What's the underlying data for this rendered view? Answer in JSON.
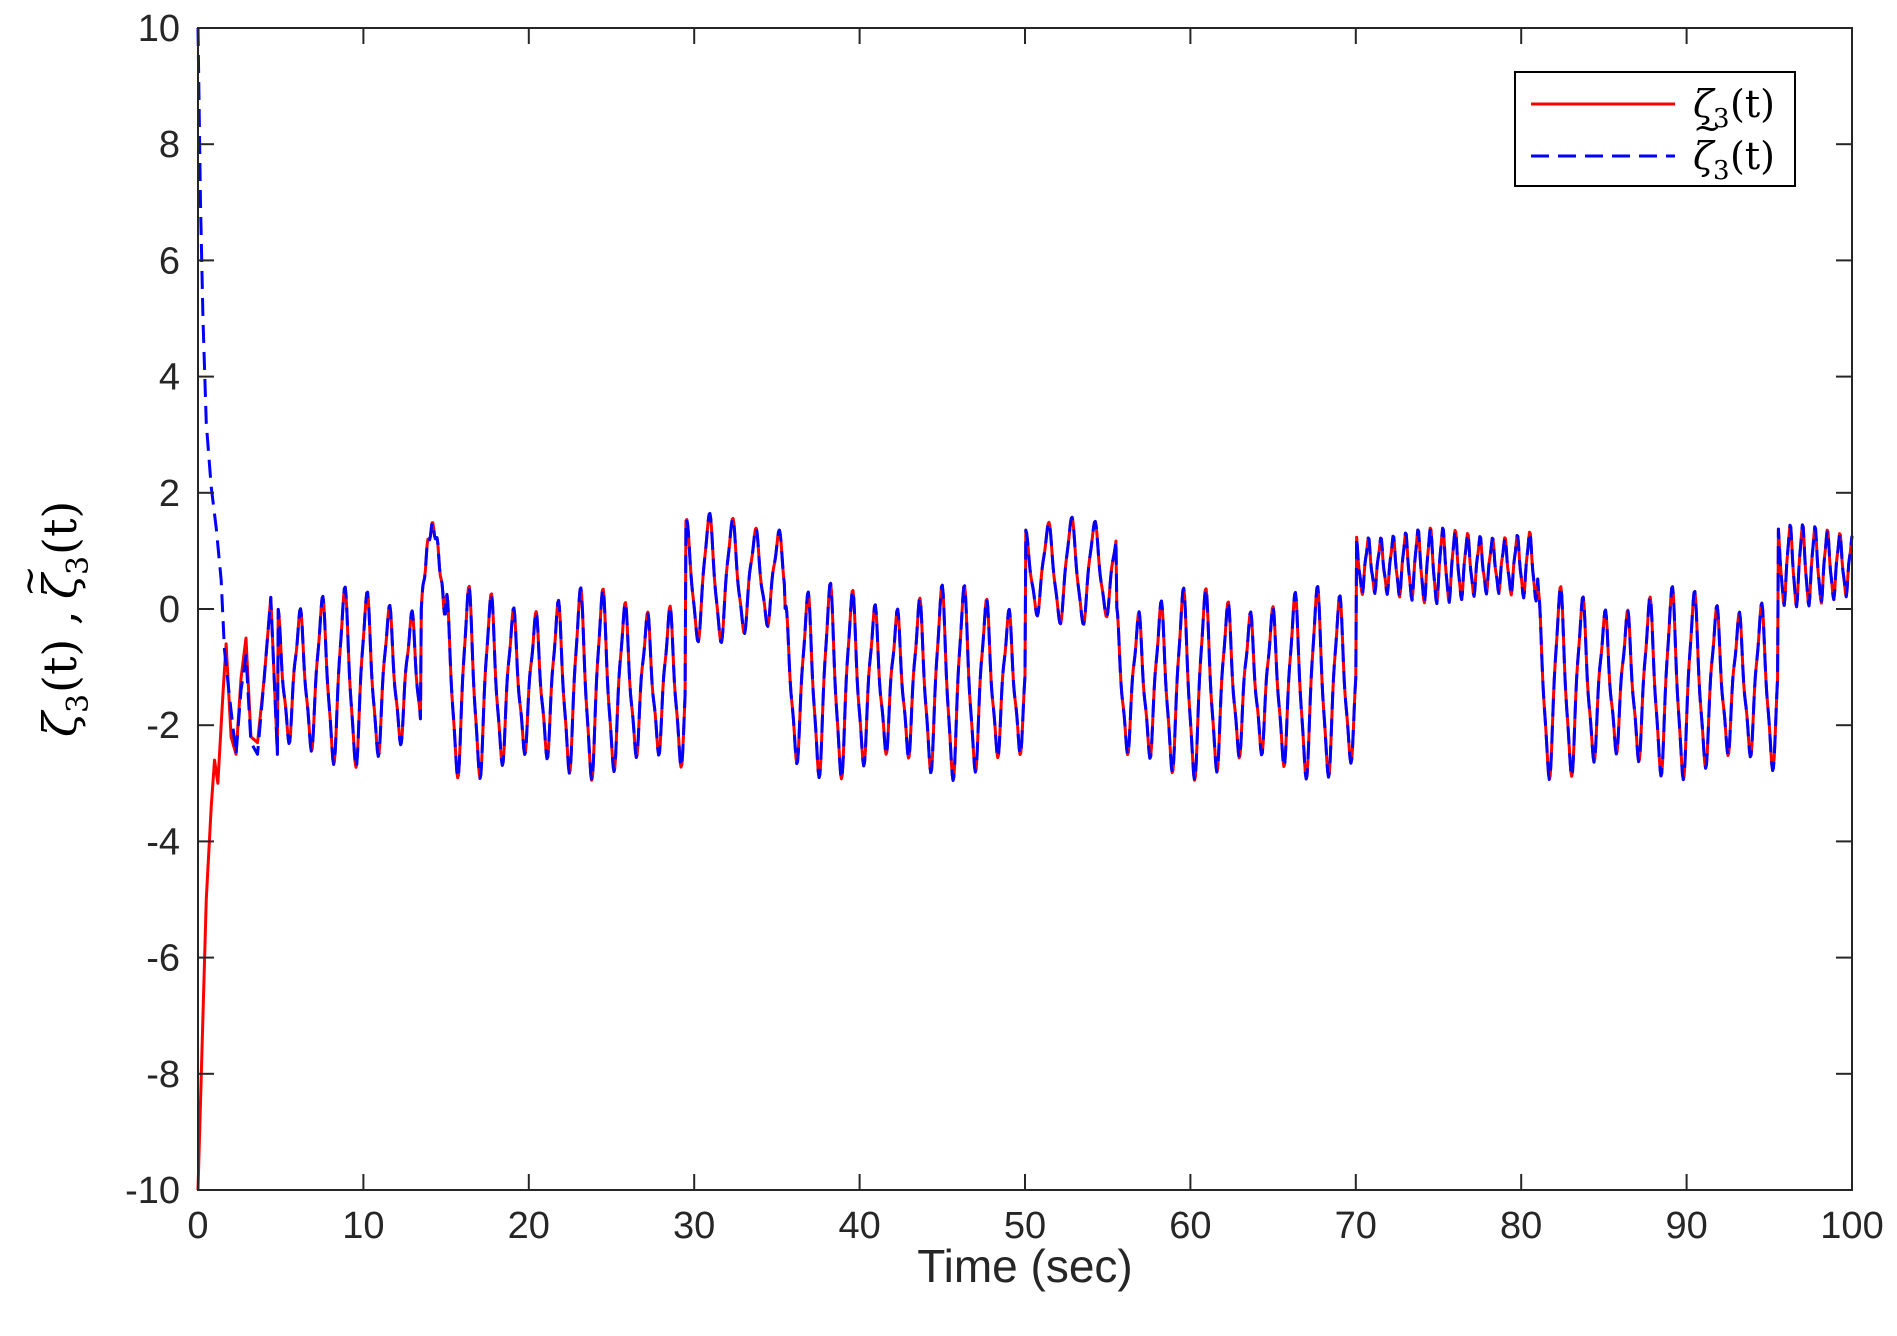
{
  "chart_data": {
    "type": "line",
    "xlabel": "Time (sec)",
    "ylabel": {
      "base": "ζ",
      "subscript": "3",
      "arg": "(t)",
      "separator": ", ",
      "tilde": "~",
      "full": "ζ3(t), ζ̃3(t)"
    },
    "xlim": [
      0,
      100
    ],
    "ylim": [
      -10,
      10
    ],
    "xticks": [
      "0",
      "10",
      "20",
      "30",
      "40",
      "50",
      "60",
      "70",
      "80",
      "90",
      "100"
    ],
    "yticks": [
      "-10",
      "-8",
      "-6",
      "-4",
      "-2",
      "0",
      "2",
      "4",
      "6",
      "8",
      "10"
    ],
    "grid": false,
    "legend_position": "top-right",
    "colors": {
      "zeta": "#ff0000",
      "zeta_tilde": "#0000ff",
      "axes": "#262626"
    },
    "series": [
      {
        "name": "ζ3(t)",
        "label_base": "ζ",
        "label_sub": "3",
        "label_arg": "(t)",
        "style": "solid",
        "color": "#ff0000",
        "points": [
          [
            0,
            -10
          ],
          [
            0.2,
            -8
          ],
          [
            0.5,
            -5
          ],
          [
            0.8,
            -3.4
          ],
          [
            1.0,
            -2.6
          ],
          [
            1.2,
            -3
          ],
          [
            1.5,
            -1.5
          ],
          [
            1.7,
            -0.6
          ],
          [
            2.0,
            -2.2
          ],
          [
            2.3,
            -2.5
          ],
          [
            2.6,
            -1.2
          ],
          [
            2.9,
            -0.5
          ],
          [
            3.2,
            -2.2
          ],
          [
            3.6,
            -2.3
          ],
          [
            4.0,
            -1.2
          ],
          [
            4.4,
            0.2
          ],
          [
            4.8,
            -2.5
          ]
        ]
      },
      {
        "name": "ζ̃3(t)",
        "label_base": "ζ",
        "label_sub": "3",
        "label_arg": "(t)",
        "style": "dashed",
        "color": "#0000ff",
        "points": [
          [
            0,
            10
          ],
          [
            0.15,
            7
          ],
          [
            0.3,
            5
          ],
          [
            0.5,
            3.2
          ],
          [
            0.8,
            2.1
          ],
          [
            1.1,
            1.4
          ],
          [
            1.4,
            0.5
          ],
          [
            1.6,
            -0.7
          ],
          [
            1.9,
            -1.5
          ],
          [
            2.3,
            -2.5
          ],
          [
            2.6,
            -1.4
          ],
          [
            2.9,
            -0.8
          ],
          [
            3.2,
            -2.3
          ],
          [
            3.6,
            -2.5
          ],
          [
            4.0,
            -1.2
          ],
          [
            4.4,
            0.2
          ],
          [
            4.8,
            -2.5
          ]
        ]
      }
    ],
    "steady_state": {
      "t_start": 4.8,
      "t_end": 100,
      "dt": 0.05,
      "segments": [
        {
          "t0": 4.8,
          "t1": 13.5,
          "kind": "osc",
          "period": 1.35,
          "high": 0.25,
          "low": -2.6
        },
        {
          "t0": 13.5,
          "t1": 15.0,
          "kind": "bump",
          "level": 1.4
        },
        {
          "t0": 15.0,
          "t1": 29.5,
          "kind": "osc",
          "period": 1.35,
          "high": 0.25,
          "low": -2.8
        },
        {
          "t0": 29.5,
          "t1": 35.5,
          "kind": "hi",
          "period": 1.4,
          "high": 1.55,
          "low": -0.5
        },
        {
          "t0": 35.5,
          "t1": 50.0,
          "kind": "osc",
          "period": 1.35,
          "high": 0.3,
          "low": -2.8
        },
        {
          "t0": 50.0,
          "t1": 55.5,
          "kind": "hi",
          "period": 1.4,
          "high": 1.5,
          "low": -0.2
        },
        {
          "t0": 55.5,
          "t1": 70.0,
          "kind": "osc",
          "period": 1.35,
          "high": 0.25,
          "low": -2.8
        },
        {
          "t0": 70.0,
          "t1": 81.0,
          "kind": "hi",
          "period": 0.75,
          "high": 1.35,
          "low": 0.15
        },
        {
          "t0": 81.0,
          "t1": 95.5,
          "kind": "osc",
          "period": 1.35,
          "high": 0.25,
          "low": -2.8
        },
        {
          "t0": 95.5,
          "t1": 100.0,
          "kind": "hi",
          "period": 0.75,
          "high": 1.4,
          "low": 0.1
        }
      ]
    }
  }
}
